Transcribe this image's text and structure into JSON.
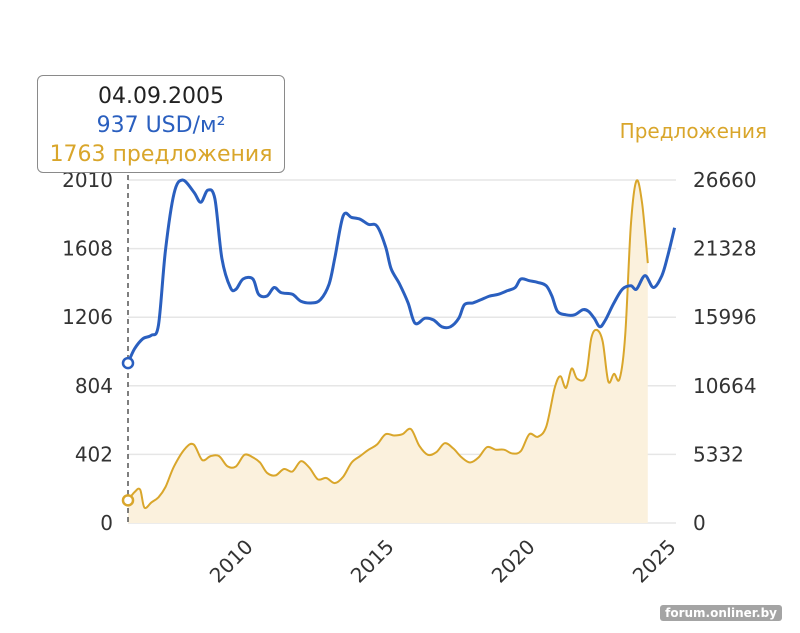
{
  "colors": {
    "price": "#2a5fbf",
    "offers": "#d9a62b",
    "offers_fill": "#fbf1dd",
    "grid": "#e6e6e6"
  },
  "tooltip": {
    "date": "04.09.2005",
    "price": "937 USD/м²",
    "offers": "1763 предложения"
  },
  "watermark": "forum.onliner.by",
  "chart_data": {
    "type": "line",
    "y1": {
      "ticks": [
        "0",
        "402",
        "804",
        "1206",
        "1608",
        "2010"
      ],
      "ylim": [
        0,
        2010
      ]
    },
    "y2": {
      "title": "Предложения",
      "ticks": [
        "0",
        "5332",
        "10664",
        "15996",
        "21328",
        "26660"
      ],
      "ylim": [
        0,
        26660
      ]
    },
    "x": {
      "ticks": [
        "2010",
        "2015",
        "2020",
        "2025"
      ],
      "xlim": [
        2005.67,
        2025.1
      ]
    },
    "series": [
      {
        "axis": "left",
        "type": "line",
        "points": [
          [
            2005.67,
            937
          ],
          [
            2005.9,
            1020
          ],
          [
            2006.2,
            1080
          ],
          [
            2006.5,
            1100
          ],
          [
            2006.75,
            1160
          ],
          [
            2007.0,
            1600
          ],
          [
            2007.3,
            1930
          ],
          [
            2007.6,
            2010
          ],
          [
            2008.0,
            1940
          ],
          [
            2008.25,
            1880
          ],
          [
            2008.5,
            1950
          ],
          [
            2008.75,
            1900
          ],
          [
            2009.0,
            1550
          ],
          [
            2009.3,
            1380
          ],
          [
            2009.5,
            1370
          ],
          [
            2009.75,
            1430
          ],
          [
            2010.1,
            1430
          ],
          [
            2010.3,
            1340
          ],
          [
            2010.6,
            1330
          ],
          [
            2010.85,
            1380
          ],
          [
            2011.1,
            1350
          ],
          [
            2011.5,
            1340
          ],
          [
            2011.8,
            1300
          ],
          [
            2012.2,
            1290
          ],
          [
            2012.5,
            1310
          ],
          [
            2012.8,
            1400
          ],
          [
            2013.0,
            1550
          ],
          [
            2013.3,
            1800
          ],
          [
            2013.6,
            1790
          ],
          [
            2013.9,
            1780
          ],
          [
            2014.2,
            1750
          ],
          [
            2014.5,
            1740
          ],
          [
            2014.8,
            1620
          ],
          [
            2015.0,
            1490
          ],
          [
            2015.3,
            1400
          ],
          [
            2015.6,
            1290
          ],
          [
            2015.85,
            1170
          ],
          [
            2016.2,
            1200
          ],
          [
            2016.5,
            1190
          ],
          [
            2016.8,
            1150
          ],
          [
            2017.1,
            1150
          ],
          [
            2017.4,
            1200
          ],
          [
            2017.6,
            1280
          ],
          [
            2017.9,
            1290
          ],
          [
            2018.2,
            1310
          ],
          [
            2018.5,
            1330
          ],
          [
            2018.8,
            1340
          ],
          [
            2019.1,
            1360
          ],
          [
            2019.4,
            1380
          ],
          [
            2019.6,
            1430
          ],
          [
            2019.9,
            1420
          ],
          [
            2020.2,
            1410
          ],
          [
            2020.5,
            1390
          ],
          [
            2020.7,
            1330
          ],
          [
            2020.9,
            1240
          ],
          [
            2021.2,
            1220
          ],
          [
            2021.5,
            1220
          ],
          [
            2021.8,
            1250
          ],
          [
            2022.0,
            1240
          ],
          [
            2022.2,
            1200
          ],
          [
            2022.4,
            1150
          ],
          [
            2022.6,
            1190
          ],
          [
            2022.9,
            1290
          ],
          [
            2023.2,
            1370
          ],
          [
            2023.5,
            1390
          ],
          [
            2023.7,
            1370
          ],
          [
            2024.0,
            1450
          ],
          [
            2024.3,
            1380
          ],
          [
            2024.6,
            1450
          ],
          [
            2024.8,
            1560
          ],
          [
            2025.05,
            1730
          ]
        ]
      },
      {
        "name": "Предложения",
        "axis": "right",
        "type": "area",
        "points": [
          [
            2005.67,
            1763
          ],
          [
            2005.9,
            2400
          ],
          [
            2006.1,
            2600
          ],
          [
            2006.25,
            1200
          ],
          [
            2006.5,
            1600
          ],
          [
            2006.75,
            2000
          ],
          [
            2007.0,
            2800
          ],
          [
            2007.3,
            4400
          ],
          [
            2007.7,
            5800
          ],
          [
            2008.0,
            6100
          ],
          [
            2008.3,
            4900
          ],
          [
            2008.6,
            5200
          ],
          [
            2008.9,
            5200
          ],
          [
            2009.2,
            4400
          ],
          [
            2009.5,
            4400
          ],
          [
            2009.8,
            5300
          ],
          [
            2010.1,
            5100
          ],
          [
            2010.35,
            4700
          ],
          [
            2010.6,
            3900
          ],
          [
            2010.9,
            3700
          ],
          [
            2011.2,
            4200
          ],
          [
            2011.5,
            4000
          ],
          [
            2011.8,
            4800
          ],
          [
            2012.1,
            4300
          ],
          [
            2012.4,
            3400
          ],
          [
            2012.7,
            3500
          ],
          [
            2013.0,
            3100
          ],
          [
            2013.3,
            3600
          ],
          [
            2013.6,
            4700
          ],
          [
            2013.9,
            5200
          ],
          [
            2014.2,
            5700
          ],
          [
            2014.5,
            6100
          ],
          [
            2014.8,
            6900
          ],
          [
            2015.1,
            6800
          ],
          [
            2015.4,
            6900
          ],
          [
            2015.7,
            7300
          ],
          [
            2016.0,
            6000
          ],
          [
            2016.3,
            5300
          ],
          [
            2016.6,
            5500
          ],
          [
            2016.9,
            6200
          ],
          [
            2017.2,
            5800
          ],
          [
            2017.5,
            5100
          ],
          [
            2017.8,
            4700
          ],
          [
            2018.1,
            5100
          ],
          [
            2018.4,
            5900
          ],
          [
            2018.7,
            5700
          ],
          [
            2019.0,
            5700
          ],
          [
            2019.3,
            5400
          ],
          [
            2019.6,
            5600
          ],
          [
            2019.9,
            6900
          ],
          [
            2020.2,
            6700
          ],
          [
            2020.5,
            7500
          ],
          [
            2020.8,
            10500
          ],
          [
            2021.0,
            11400
          ],
          [
            2021.2,
            10500
          ],
          [
            2021.4,
            12000
          ],
          [
            2021.6,
            11200
          ],
          [
            2021.9,
            11400
          ],
          [
            2022.1,
            14400
          ],
          [
            2022.3,
            15000
          ],
          [
            2022.5,
            14100
          ],
          [
            2022.7,
            11000
          ],
          [
            2022.9,
            11600
          ],
          [
            2023.1,
            11200
          ],
          [
            2023.3,
            14600
          ],
          [
            2023.5,
            23200
          ],
          [
            2023.7,
            26600
          ],
          [
            2023.9,
            24800
          ],
          [
            2024.1,
            20200
          ]
        ]
      }
    ]
  }
}
